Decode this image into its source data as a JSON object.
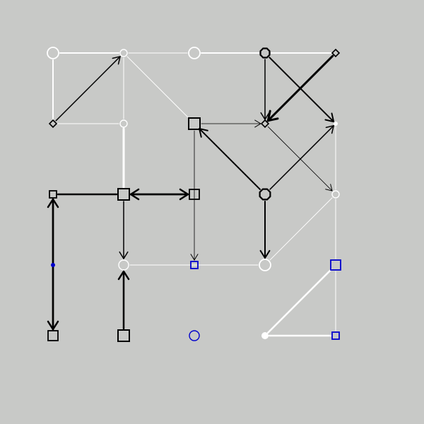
{
  "colors": {
    "background": "#c8c9c7",
    "white": "#ffffff",
    "black": "#000000",
    "blue": "#0000cc"
  },
  "graph": {
    "nodes": [
      {
        "id": "n0",
        "row": 0,
        "col": 0,
        "shape": "circle",
        "color": "white",
        "size": "large"
      },
      {
        "id": "n1",
        "row": 0,
        "col": 1,
        "shape": "circle",
        "color": "white",
        "size": "small"
      },
      {
        "id": "n2",
        "row": 0,
        "col": 2,
        "shape": "circle",
        "color": "white",
        "size": "large"
      },
      {
        "id": "n3",
        "row": 0,
        "col": 3,
        "shape": "octagon",
        "color": "black",
        "size": "medium"
      },
      {
        "id": "n4",
        "row": 0,
        "col": 4,
        "shape": "diamond",
        "color": "black",
        "size": "small"
      },
      {
        "id": "n5",
        "row": 1,
        "col": 0,
        "shape": "diamond",
        "color": "black",
        "size": "small"
      },
      {
        "id": "n6",
        "row": 1,
        "col": 1,
        "shape": "circle",
        "color": "white",
        "size": "small"
      },
      {
        "id": "n7",
        "row": 1,
        "col": 2,
        "shape": "square",
        "color": "black",
        "size": "large"
      },
      {
        "id": "n8",
        "row": 1,
        "col": 3,
        "shape": "diamond",
        "color": "black",
        "size": "small"
      },
      {
        "id": "n9",
        "row": 1,
        "col": 4,
        "shape": "dot",
        "color": "white",
        "size": "tiny"
      },
      {
        "id": "n10",
        "row": 2,
        "col": 0,
        "shape": "square",
        "color": "black",
        "size": "small"
      },
      {
        "id": "n11",
        "row": 2,
        "col": 1,
        "shape": "square",
        "color": "black",
        "size": "large"
      },
      {
        "id": "n12",
        "row": 2,
        "col": 2,
        "shape": "square",
        "color": "black",
        "size": "medium"
      },
      {
        "id": "n13",
        "row": 2,
        "col": 3,
        "shape": "octagon",
        "color": "black",
        "size": "large"
      },
      {
        "id": "n14",
        "row": 2,
        "col": 4,
        "shape": "circle",
        "color": "white",
        "size": "small"
      },
      {
        "id": "n15",
        "row": 3,
        "col": 0,
        "shape": "dot",
        "color": "blue",
        "size": "tiny"
      },
      {
        "id": "n16",
        "row": 3,
        "col": 1,
        "shape": "circle",
        "color": "white",
        "size": "medium"
      },
      {
        "id": "n17",
        "row": 3,
        "col": 2,
        "shape": "square",
        "color": "blue",
        "size": "small"
      },
      {
        "id": "n18",
        "row": 3,
        "col": 3,
        "shape": "circle",
        "color": "white",
        "size": "large"
      },
      {
        "id": "n19",
        "row": 3,
        "col": 4,
        "shape": "square",
        "color": "blue",
        "size": "medium"
      },
      {
        "id": "n20",
        "row": 4,
        "col": 0,
        "shape": "square",
        "color": "black",
        "size": "medium"
      },
      {
        "id": "n21",
        "row": 4,
        "col": 1,
        "shape": "square",
        "color": "black",
        "size": "large"
      },
      {
        "id": "n22",
        "row": 4,
        "col": 2,
        "shape": "circle",
        "color": "blue",
        "size": "medium"
      },
      {
        "id": "n23",
        "row": 4,
        "col": 3,
        "shape": "dot",
        "color": "white",
        "size": "small"
      },
      {
        "id": "n24",
        "row": 4,
        "col": 4,
        "shape": "square",
        "color": "blue",
        "size": "small"
      }
    ],
    "edges": [
      {
        "from": "n0",
        "to": "n1",
        "color": "white",
        "weight": 2,
        "arrow": false
      },
      {
        "from": "n1",
        "to": "n2",
        "color": "white",
        "weight": 1,
        "arrow": false
      },
      {
        "from": "n2",
        "to": "n3",
        "color": "white",
        "weight": 2,
        "arrow": false
      },
      {
        "from": "n3",
        "to": "n4",
        "color": "white",
        "weight": 2,
        "arrow": false
      },
      {
        "from": "n0",
        "to": "n5",
        "color": "white",
        "weight": 2,
        "arrow": false
      },
      {
        "from": "n5",
        "to": "n1",
        "color": "black",
        "weight": 1.5,
        "arrow": true
      },
      {
        "from": "n1",
        "to": "n6",
        "color": "white",
        "weight": 1,
        "arrow": false
      },
      {
        "from": "n1",
        "to": "n7",
        "color": "white",
        "weight": 1,
        "arrow": false
      },
      {
        "from": "n5",
        "to": "n6",
        "color": "white",
        "weight": 1,
        "arrow": false
      },
      {
        "from": "n3",
        "to": "n8",
        "color": "black",
        "weight": 1.5,
        "arrow": true
      },
      {
        "from": "n4",
        "to": "n8",
        "color": "black",
        "weight": 3,
        "arrow": true
      },
      {
        "from": "n3",
        "to": "n9",
        "color": "black",
        "weight": 2,
        "arrow": true
      },
      {
        "from": "n7",
        "to": "n8",
        "color": "black",
        "weight": 0.8,
        "arrow": true
      },
      {
        "from": "n8",
        "to": "n14",
        "color": "black",
        "weight": 0.8,
        "arrow": true
      },
      {
        "from": "n6",
        "to": "n11",
        "color": "white",
        "weight": 3,
        "arrow": false
      },
      {
        "from": "n13",
        "to": "n7",
        "color": "black",
        "weight": 2,
        "arrow": true
      },
      {
        "from": "n13",
        "to": "n9",
        "color": "black",
        "weight": 1.5,
        "arrow": true
      },
      {
        "from": "n9",
        "to": "n14",
        "color": "white",
        "weight": 1,
        "arrow": false
      },
      {
        "from": "n10",
        "to": "n11",
        "color": "black",
        "weight": 2.5,
        "arrow": false
      },
      {
        "from": "n11",
        "to": "n12",
        "color": "black",
        "weight": 2.5,
        "arrow": true
      },
      {
        "from": "n12",
        "to": "n11",
        "color": "black",
        "weight": 2.5,
        "arrow": true
      },
      {
        "from": "n7",
        "to": "n17",
        "color": "black",
        "weight": 0.8,
        "arrow": true
      },
      {
        "from": "n11",
        "to": "n16",
        "color": "black",
        "weight": 1.5,
        "arrow": true
      },
      {
        "from": "n13",
        "to": "n18",
        "color": "black",
        "weight": 2,
        "arrow": true
      },
      {
        "from": "n14",
        "to": "n18",
        "color": "white",
        "weight": 1,
        "arrow": false
      },
      {
        "from": "n14",
        "to": "n19",
        "color": "white",
        "weight": 1,
        "arrow": false
      },
      {
        "from": "n16",
        "to": "n18",
        "color": "white",
        "weight": 1,
        "arrow": false
      },
      {
        "from": "n10",
        "to": "n20",
        "color": "black",
        "weight": 2.5,
        "arrow": true
      },
      {
        "from": "n20",
        "to": "n10",
        "color": "black",
        "weight": 2.5,
        "arrow": true
      },
      {
        "from": "n21",
        "to": "n16",
        "color": "black",
        "weight": 2.5,
        "arrow": true
      },
      {
        "from": "n19",
        "to": "n23",
        "color": "white",
        "weight": 2.5,
        "arrow": false
      },
      {
        "from": "n19",
        "to": "n24",
        "color": "white",
        "weight": 1,
        "arrow": false
      },
      {
        "from": "n23",
        "to": "n24",
        "color": "white",
        "weight": 2.5,
        "arrow": false
      }
    ]
  }
}
